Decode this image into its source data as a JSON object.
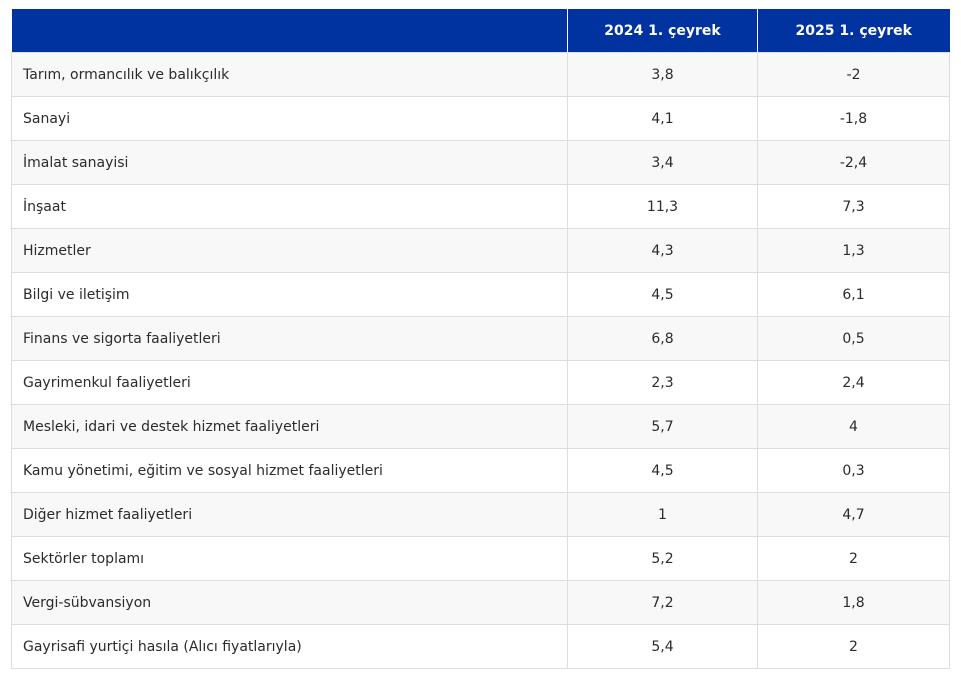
{
  "table": {
    "headers": [
      "",
      "2024 1. çeyrek",
      "2025 1. çeyrek"
    ],
    "rows": [
      {
        "sector": "Tarım, ormancılık ve balıkçılık",
        "q2024": "3,8",
        "q2025": "-2"
      },
      {
        "sector": "Sanayi",
        "q2024": "4,1",
        "q2025": "-1,8"
      },
      {
        "sector": "İmalat sanayisi",
        "q2024": "3,4",
        "q2025": "-2,4"
      },
      {
        "sector": "İnşaat",
        "q2024": "11,3",
        "q2025": "7,3"
      },
      {
        "sector": "Hizmetler",
        "q2024": "4,3",
        "q2025": "1,3"
      },
      {
        "sector": "Bilgi ve iletişim",
        "q2024": "4,5",
        "q2025": "6,1"
      },
      {
        "sector": "Finans ve sigorta faaliyetleri",
        "q2024": "6,8",
        "q2025": "0,5"
      },
      {
        "sector": "Gayrimenkul faaliyetleri",
        "q2024": "2,3",
        "q2025": "2,4"
      },
      {
        "sector": "Mesleki, idari ve destek hizmet faaliyetleri",
        "q2024": "5,7",
        "q2025": "4"
      },
      {
        "sector": "Kamu yönetimi, eğitim ve sosyal hizmet faaliyetleri",
        "q2024": "4,5",
        "q2025": "0,3"
      },
      {
        "sector": "Diğer hizmet faaliyetleri",
        "q2024": "1",
        "q2025": "4,7"
      },
      {
        "sector": "Sektörler toplamı",
        "q2024": "5,2",
        "q2025": "2"
      },
      {
        "sector": "Vergi-sübvansiyon",
        "q2024": "7,2",
        "q2025": "1,8"
      },
      {
        "sector": "Gayrisafi yurtiçi hasıla (Alıcı fiyatlarıyla)",
        "q2024": "5,4",
        "q2025": "2"
      }
    ]
  },
  "colors": {
    "header_bg": "#0033a0",
    "header_text": "#ffffff",
    "row_alt_bg": "#f8f8f8",
    "border": "#dddddd"
  }
}
